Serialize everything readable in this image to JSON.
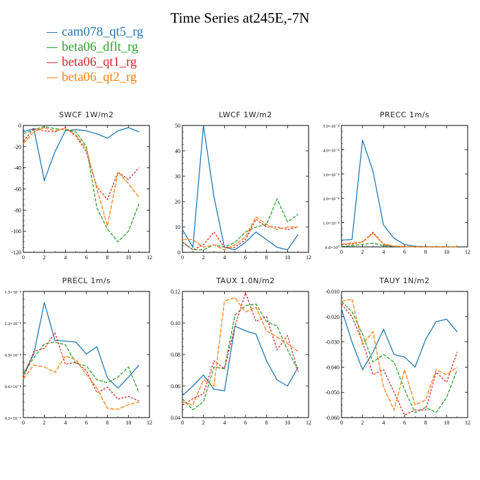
{
  "title": "Time Series at245E,-7N",
  "legend": [
    {
      "name": "cam078_qt5_rg",
      "color": "#1f77b4"
    },
    {
      "name": "beta06_dflt_rg",
      "color": "#2ca02c"
    },
    {
      "name": "beta06_qt1_rg",
      "color": "#d62728"
    },
    {
      "name": "beta06_qt2_rg",
      "color": "#ff7f0e"
    }
  ],
  "chart_data": [
    {
      "type": "line",
      "title": "SWCF   1W/m2",
      "x": [
        0,
        1,
        2,
        3,
        4,
        5,
        6,
        7,
        8,
        9,
        10,
        11
      ],
      "xlim": [
        0,
        12
      ],
      "ylim": [
        -120,
        0
      ],
      "xticks": [
        "0",
        "2",
        "4",
        "6",
        "8",
        "10",
        "12"
      ],
      "yticks": [
        "0",
        "-20",
        "-40",
        "-60",
        "-80",
        "-100",
        "-120"
      ],
      "series": [
        {
          "name": "cam078_qt5_rg",
          "values": [
            -6,
            -3,
            -52,
            -25,
            -5,
            -4,
            -5,
            -8,
            -12,
            -5,
            -2,
            -6
          ]
        },
        {
          "name": "beta06_dflt_rg",
          "values": [
            -8,
            -4,
            -1,
            -3,
            -4,
            -6,
            -20,
            -78,
            -98,
            -110,
            -100,
            -74
          ]
        },
        {
          "name": "beta06_qt1_rg",
          "values": [
            -15,
            -3,
            -5,
            -6,
            -2,
            -10,
            -25,
            -58,
            -70,
            -44,
            -51,
            -40
          ]
        },
        {
          "name": "beta06_qt2_rg",
          "values": [
            -17,
            -6,
            -2,
            -5,
            -3,
            -9,
            -22,
            -60,
            -95,
            -44,
            -55,
            -68
          ]
        }
      ]
    },
    {
      "type": "line",
      "title": "LWCF   1W/m2",
      "x": [
        0,
        1,
        2,
        3,
        4,
        5,
        6,
        7,
        8,
        9,
        10,
        11
      ],
      "xlim": [
        0,
        12
      ],
      "ylim": [
        0,
        50
      ],
      "xticks": [
        "0",
        "2",
        "4",
        "6",
        "8",
        "10",
        "12"
      ],
      "yticks": [
        "50",
        "40",
        "30",
        "20",
        "10",
        "0"
      ],
      "series": [
        {
          "name": "cam078_qt5_rg",
          "values": [
            9,
            2,
            50,
            22,
            2,
            1,
            4,
            8,
            5,
            2,
            1,
            7
          ]
        },
        {
          "name": "beta06_dflt_rg",
          "values": [
            4,
            1,
            1,
            3,
            2,
            4,
            8,
            10,
            11,
            21,
            12,
            15
          ]
        },
        {
          "name": "beta06_qt1_rg",
          "values": [
            4,
            1,
            3,
            8,
            2,
            2,
            5,
            13,
            10,
            10,
            9,
            10
          ]
        },
        {
          "name": "beta06_qt2_rg",
          "values": [
            5,
            5,
            2,
            3,
            1,
            3,
            6,
            14,
            11,
            9,
            10,
            10
          ]
        }
      ]
    },
    {
      "type": "line",
      "title": "PRECC   1m/s",
      "x": [
        0,
        1,
        2,
        3,
        4,
        5,
        6,
        7,
        8,
        9,
        10,
        11
      ],
      "xlim": [
        0,
        12
      ],
      "ylim": [
        0,
        5e-08
      ],
      "xticks": [
        "0",
        "2",
        "4",
        "6",
        "8",
        "10",
        "12"
      ],
      "yticks": [
        "5.0×10⁻⁸",
        "4.0×10⁻⁸",
        "3.0×10⁻⁸",
        "2.0×10⁻⁸",
        "1.0×10⁻⁸",
        "0.0×10⁰"
      ],
      "series": [
        {
          "name": "cam078_qt5_rg",
          "values": [
            2.8e-09,
            3e-09,
            4.4e-08,
            3.1e-08,
            9e-09,
            3.5e-09,
            1e-09,
            2e-10,
            1e-10,
            0,
            0,
            0
          ]
        },
        {
          "name": "beta06_dflt_rg",
          "values": [
            2e-10,
            5e-10,
            1e-09,
            1.5e-09,
            5e-10,
            2e-10,
            1e-10,
            0,
            0,
            0,
            0,
            0
          ]
        },
        {
          "name": "beta06_qt1_rg",
          "values": [
            1e-09,
            1.2e-09,
            2e-09,
            6e-09,
            1e-09,
            3e-10,
            1e-10,
            0,
            0,
            0,
            0,
            0
          ]
        },
        {
          "name": "beta06_qt2_rg",
          "values": [
            1.2e-09,
            1.5e-09,
            2e-09,
            5.5e-09,
            1.2e-09,
            3e-10,
            1e-10,
            0,
            0,
            0,
            0,
            0
          ]
        }
      ]
    },
    {
      "type": "line",
      "title": "PRECL   1m/s",
      "x": [
        0,
        1,
        2,
        3,
        4,
        5,
        6,
        7,
        8,
        9,
        10,
        11
      ],
      "xlim": [
        0,
        12
      ],
      "ylim": [
        2.3e-08,
        1.6e-07
      ],
      "xticks": [
        "0",
        "2",
        "4",
        "6",
        "8",
        "10",
        "12"
      ],
      "yticks": [
        "1.5×10⁻⁸",
        "1.2×10⁻⁸",
        "0.9×10⁻⁸",
        "0.6×10⁻⁸",
        "0.3×10⁻⁸"
      ],
      "series": [
        {
          "name": "cam078_qt5_rg",
          "values": [
            7e-08,
            9.2e-08,
            1.48e-07,
            1.07e-07,
            1.06e-07,
            1.05e-07,
            9.2e-08,
            1e-07,
            6.6e-08,
            5.5e-08,
            6.7e-08,
            8e-08
          ]
        },
        {
          "name": "beta06_dflt_rg",
          "values": [
            7e-08,
            8.8e-08,
            1.03e-07,
            1.05e-07,
            1.02e-07,
            8.2e-08,
            7.9e-08,
            6.4e-08,
            6.1e-08,
            6.7e-08,
            7.8e-08,
            5e-08
          ]
        },
        {
          "name": "beta06_qt1_rg",
          "values": [
            6.6e-08,
            9.5e-08,
            9.8e-08,
            1.15e-07,
            8.1e-08,
            8.3e-08,
            7.4e-08,
            5e-08,
            5.6e-08,
            4.3e-08,
            4.6e-08,
            4.1e-08
          ]
        },
        {
          "name": "beta06_qt2_rg",
          "values": [
            6.5e-08,
            8e-08,
            7.8e-08,
            7.2e-08,
            9e-08,
            8.6e-08,
            7e-08,
            5.5e-08,
            3.3e-08,
            3.2e-08,
            3.7e-08,
            4e-08
          ]
        }
      ]
    },
    {
      "type": "line",
      "title": "TAUX   1.0N/m2",
      "x": [
        0,
        1,
        2,
        3,
        4,
        5,
        6,
        7,
        8,
        9,
        10,
        11
      ],
      "xlim": [
        0,
        12
      ],
      "ylim": [
        0.04,
        0.12
      ],
      "xticks": [
        "0",
        "2",
        "4",
        "6",
        "8",
        "10",
        "12"
      ],
      "yticks": [
        "0.12",
        "0.10",
        "0.08",
        "0.06",
        "0.04"
      ],
      "series": [
        {
          "name": "cam078_qt5_rg",
          "values": [
            0.054,
            0.06,
            0.067,
            0.058,
            0.057,
            0.098,
            0.095,
            0.093,
            0.076,
            0.064,
            0.06,
            0.072
          ]
        },
        {
          "name": "beta06_dflt_rg",
          "values": [
            0.052,
            0.045,
            0.05,
            0.072,
            0.071,
            0.105,
            0.111,
            0.112,
            0.101,
            0.098,
            0.083,
            0.07
          ]
        },
        {
          "name": "beta06_qt1_rg",
          "values": [
            0.048,
            0.052,
            0.055,
            0.076,
            0.071,
            0.098,
            0.119,
            0.101,
            0.104,
            0.083,
            0.092,
            0.069
          ]
        },
        {
          "name": "beta06_qt2_rg",
          "values": [
            0.05,
            0.048,
            0.064,
            0.06,
            0.114,
            0.116,
            0.107,
            0.11,
            0.095,
            0.091,
            0.087,
            0.082
          ]
        }
      ]
    },
    {
      "type": "line",
      "title": "TAUY   1N/m2",
      "x": [
        0,
        1,
        2,
        3,
        4,
        5,
        6,
        7,
        8,
        9,
        10,
        11
      ],
      "xlim": [
        0,
        12
      ],
      "ylim": [
        -0.06,
        -0.01
      ],
      "xticks": [
        "0",
        "2",
        "4",
        "6",
        "8",
        "10",
        "12"
      ],
      "yticks": [
        "-0.010",
        "-0.020",
        "-0.030",
        "-0.040",
        "-0.050",
        "-0.060"
      ],
      "series": [
        {
          "name": "cam078_qt5_rg",
          "values": [
            -0.017,
            -0.03,
            -0.041,
            -0.034,
            -0.025,
            -0.035,
            -0.036,
            -0.04,
            -0.029,
            -0.022,
            -0.021,
            -0.026
          ]
        },
        {
          "name": "beta06_dflt_rg",
          "values": [
            -0.014,
            -0.018,
            -0.027,
            -0.038,
            -0.035,
            -0.038,
            -0.049,
            -0.058,
            -0.056,
            -0.058,
            -0.052,
            -0.041
          ]
        },
        {
          "name": "beta06_qt1_rg",
          "values": [
            -0.015,
            -0.02,
            -0.03,
            -0.043,
            -0.041,
            -0.05,
            -0.059,
            -0.057,
            -0.057,
            -0.042,
            -0.046,
            -0.034
          ]
        },
        {
          "name": "beta06_qt2_rg",
          "values": [
            -0.014,
            -0.013,
            -0.031,
            -0.026,
            -0.048,
            -0.057,
            -0.041,
            -0.055,
            -0.053,
            -0.041,
            -0.043,
            -0.04
          ]
        }
      ]
    }
  ]
}
